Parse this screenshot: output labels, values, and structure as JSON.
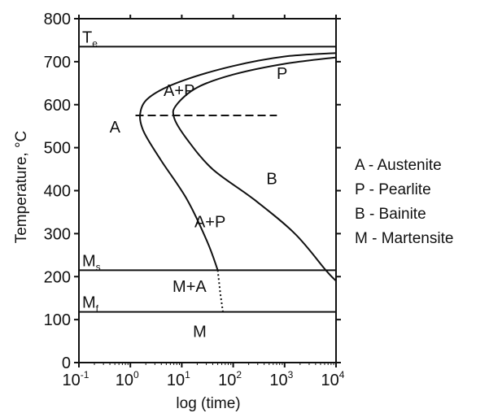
{
  "chart_data": {
    "type": "diagram",
    "xlabel": "log (time)",
    "ylabel": "Temperature, °C",
    "ylim": [
      0,
      800
    ],
    "yticks": [
      {
        "value": 0,
        "label": "0"
      },
      {
        "value": 100,
        "label": "100"
      },
      {
        "value": 200,
        "label": "200"
      },
      {
        "value": 300,
        "label": "300"
      },
      {
        "value": 400,
        "label": "400"
      },
      {
        "value": 500,
        "label": "500"
      },
      {
        "value": 600,
        "label": "600"
      },
      {
        "value": 700,
        "label": "700"
      },
      {
        "value": 800,
        "label": "800"
      }
    ],
    "xticks": [
      {
        "exp": -1,
        "base": "10",
        "sup": "-1"
      },
      {
        "exp": 0,
        "base": "10",
        "sup": "0"
      },
      {
        "exp": 1,
        "base": "10",
        "sup": "1"
      },
      {
        "exp": 2,
        "base": "10",
        "sup": "2"
      },
      {
        "exp": 3,
        "base": "10",
        "sup": "3"
      },
      {
        "exp": 4,
        "base": "10",
        "sup": "4"
      }
    ],
    "reference_lines": [
      {
        "value": 735,
        "label": "T",
        "sub": "e"
      },
      {
        "value": 215,
        "label": "M",
        "sub": "s"
      },
      {
        "value": 118,
        "label": "M",
        "sub": "f"
      }
    ],
    "regions": [
      {
        "label": "A+P",
        "logt": 0.95,
        "temp": 620
      },
      {
        "label": "P",
        "logt": 2.95,
        "temp": 660
      },
      {
        "label": "A",
        "logt": -0.3,
        "temp": 535
      },
      {
        "label": "B",
        "logt": 2.75,
        "temp": 415
      },
      {
        "label": "A+P",
        "logt": 1.55,
        "temp": 315
      },
      {
        "label": "M+A",
        "logt": 1.15,
        "temp": 165
      },
      {
        "label": "M",
        "logt": 1.35,
        "temp": 60
      }
    ],
    "start_curve": [
      [
        4,
        720
      ],
      [
        3,
        712
      ],
      [
        2,
        690
      ],
      [
        1,
        655
      ],
      [
        0.4,
        620
      ],
      [
        0.2,
        585
      ],
      [
        0.25,
        540
      ],
      [
        0.6,
        470
      ],
      [
        1.1,
        380
      ],
      [
        1.5,
        280
      ],
      [
        1.7,
        215
      ]
    ],
    "finish_curve": [
      [
        4,
        710
      ],
      [
        3,
        695
      ],
      [
        2,
        670
      ],
      [
        1.3,
        640
      ],
      [
        0.9,
        600
      ],
      [
        0.85,
        570
      ],
      [
        1.1,
        520
      ],
      [
        1.6,
        450
      ],
      [
        2.4,
        380
      ],
      [
        3.2,
        300
      ],
      [
        3.8,
        215
      ],
      [
        4,
        190
      ]
    ],
    "martensite_extension": [
      [
        1.7,
        215
      ],
      [
        1.75,
        160
      ],
      [
        1.8,
        118
      ]
    ],
    "nose_line": {
      "temp": 575,
      "logt_start": 0.1,
      "logt_end": 2.85
    },
    "legend": [
      "A - Austenite",
      "P - Pearlite",
      "B - Bainite",
      "M - Martensite"
    ]
  }
}
